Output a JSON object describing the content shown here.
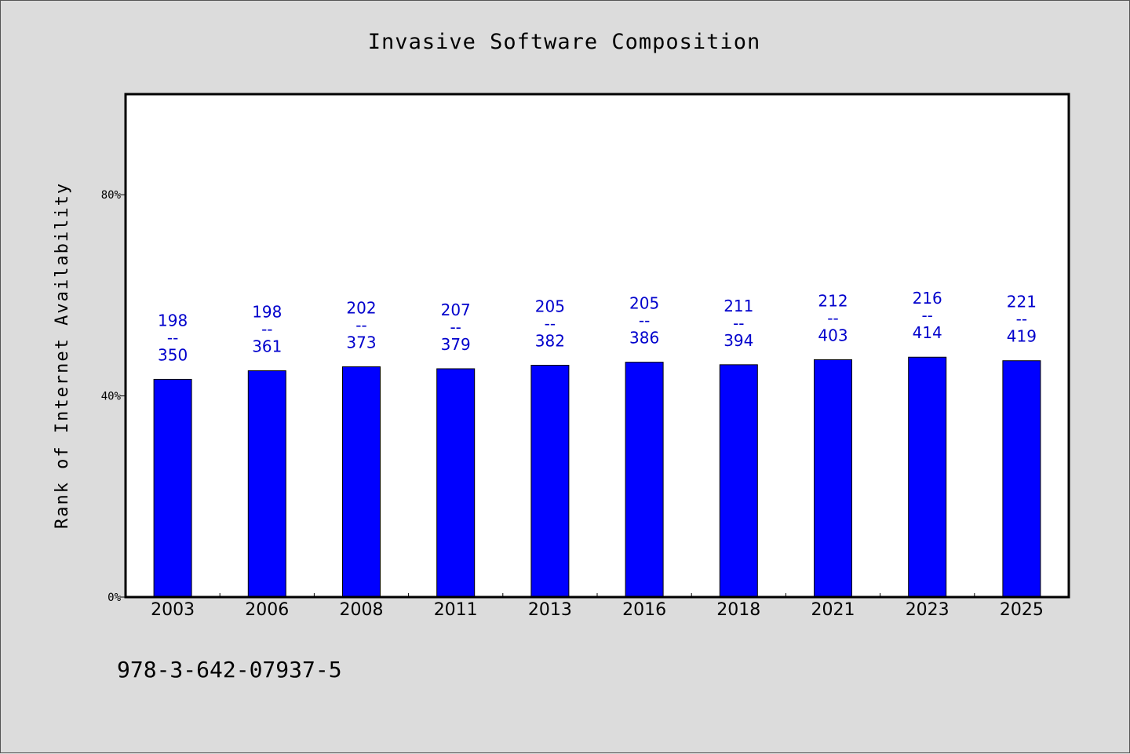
{
  "chart_data": {
    "type": "bar",
    "title": "Invasive Software Composition",
    "xlabel": "",
    "ylabel": "Rank of Internet Availability",
    "categories": [
      "2003",
      "2006",
      "2008",
      "2011",
      "2013",
      "2016",
      "2018",
      "2021",
      "2023",
      "2025"
    ],
    "series": [
      {
        "values": [
          43.3,
          45.0,
          45.8,
          45.4,
          46.1,
          46.7,
          46.2,
          47.2,
          47.7,
          47.0
        ],
        "color": "#0000ff"
      }
    ],
    "data_labels": [
      [
        "198",
        "--",
        "350"
      ],
      [
        "198",
        "--",
        "361"
      ],
      [
        "202",
        "--",
        "373"
      ],
      [
        "207",
        "--",
        "379"
      ],
      [
        "205",
        "--",
        "382"
      ],
      [
        "205",
        "--",
        "386"
      ],
      [
        "211",
        "--",
        "394"
      ],
      [
        "212",
        "--",
        "403"
      ],
      [
        "216",
        "--",
        "414"
      ],
      [
        "221",
        "--",
        "419"
      ]
    ],
    "yticks": [
      {
        "value": 0,
        "label": "0%"
      },
      {
        "value": 40,
        "label": "40%"
      },
      {
        "value": 80,
        "label": "80%"
      }
    ],
    "ylim": [
      0,
      100
    ],
    "grid": false,
    "legend": "none",
    "label_color": "#0000cc"
  },
  "footer": {
    "isbn": "978-3-642-07937-5"
  }
}
